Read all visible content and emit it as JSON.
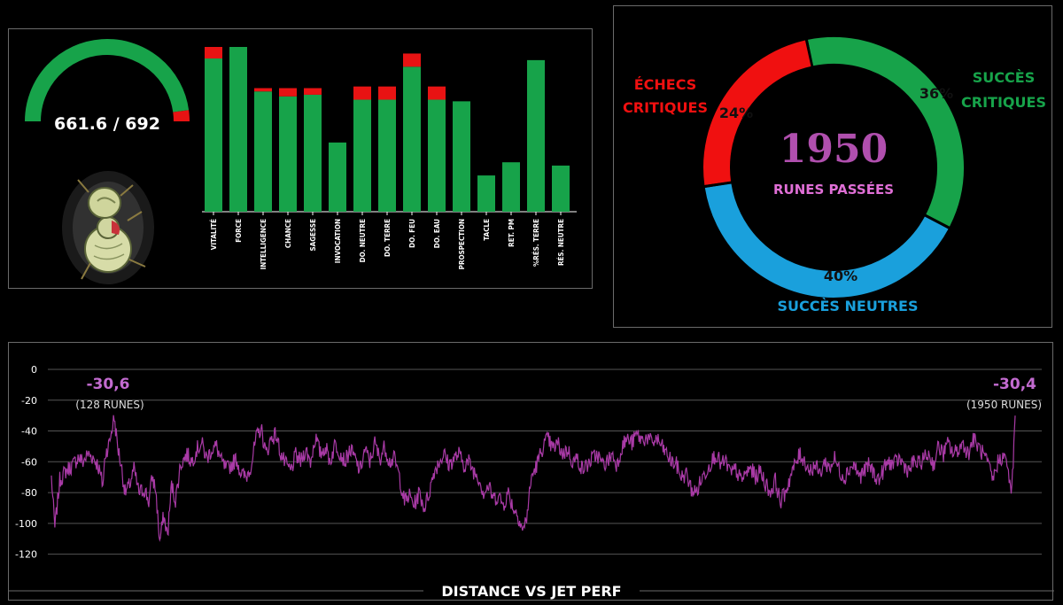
{
  "gauge": {
    "value": 661.6,
    "max": 692,
    "label": "661.6 / 692",
    "fill_color": "#17a34a",
    "rest_color": "#e81313"
  },
  "mascot": {
    "icon": "bandaged-doll-icon"
  },
  "chart_data": [
    {
      "type": "bar",
      "stacked": true,
      "categories": [
        "VITALITÉ",
        "FORCE",
        "INTELLIGENCE",
        "CHANCE",
        "SAGESSE",
        "INVOCATION",
        "DO. NEUTRE",
        "DO. TERRE",
        "DO. FEU",
        "DO. EAU",
        "PROSPECTION",
        "TACLE",
        "RET. PM",
        "%RÉS. TERRE",
        "RÉS. NEUTRE"
      ],
      "series": [
        {
          "color": "#17a34a",
          "values": [
            93,
            100,
            73,
            70,
            71,
            42,
            68,
            68,
            88,
            68,
            67,
            22,
            30,
            92,
            28
          ]
        },
        {
          "color": "#e81313",
          "values": [
            7,
            0,
            2,
            5,
            4,
            0,
            8,
            8,
            8,
            8,
            0,
            0,
            0,
            0,
            0
          ]
        }
      ],
      "ylim": [
        0,
        100
      ]
    },
    {
      "type": "pie",
      "donut": true,
      "center_value": "1950",
      "center_label": "RUNES PASSÉES",
      "slices": [
        {
          "label": "SUCCÈS CRITIQUES",
          "pct_label": "36%",
          "value": 36,
          "color": "#17a34a"
        },
        {
          "label": "SUCCÈS NEUTRES",
          "pct_label": "40%",
          "value": 40,
          "color": "#1aa0dc"
        },
        {
          "label": "ÉCHECS CRITIQUES",
          "pct_label": "24%",
          "value": 24,
          "color": "#f01010"
        }
      ]
    },
    {
      "type": "line",
      "title": "DISTANCE VS JET PERF",
      "ylim": [
        -130,
        0
      ],
      "yticks": [
        0,
        -20,
        -40,
        -60,
        -80,
        -100,
        -120
      ],
      "x_range": [
        1,
        1950
      ],
      "color": "#a93aa6",
      "annotations": [
        {
          "value": "-30,6",
          "sub": "(128 RUNES)",
          "x": 128
        },
        {
          "value": "-30,4",
          "sub": "(1950 RUNES)",
          "x": 1950
        }
      ],
      "anchor_points": [
        [
          1,
          -70
        ],
        [
          8,
          -103
        ],
        [
          18,
          -72
        ],
        [
          30,
          -66
        ],
        [
          45,
          -62
        ],
        [
          55,
          -57
        ],
        [
          65,
          -60
        ],
        [
          75,
          -55
        ],
        [
          85,
          -57
        ],
        [
          95,
          -62
        ],
        [
          105,
          -75
        ],
        [
          110,
          -55
        ],
        [
          118,
          -48
        ],
        [
          125,
          -36
        ],
        [
          128,
          -31
        ],
        [
          135,
          -50
        ],
        [
          142,
          -62
        ],
        [
          150,
          -80
        ],
        [
          158,
          -76
        ],
        [
          168,
          -65
        ],
        [
          178,
          -80
        ],
        [
          190,
          -78
        ],
        [
          198,
          -86
        ],
        [
          205,
          -70
        ],
        [
          212,
          -78
        ],
        [
          220,
          -112
        ],
        [
          228,
          -95
        ],
        [
          236,
          -108
        ],
        [
          244,
          -75
        ],
        [
          252,
          -85
        ],
        [
          262,
          -62
        ],
        [
          275,
          -55
        ],
        [
          285,
          -60
        ],
        [
          295,
          -52
        ],
        [
          305,
          -48
        ],
        [
          315,
          -58
        ],
        [
          325,
          -52
        ],
        [
          335,
          -50
        ],
        [
          345,
          -60
        ],
        [
          355,
          -65
        ],
        [
          365,
          -62
        ],
        [
          375,
          -58
        ],
        [
          385,
          -68
        ],
        [
          395,
          -70
        ],
        [
          405,
          -62
        ],
        [
          415,
          -45
        ],
        [
          425,
          -38
        ],
        [
          435,
          -55
        ],
        [
          445,
          -45
        ],
        [
          455,
          -42
        ],
        [
          465,
          -55
        ],
        [
          475,
          -62
        ],
        [
          485,
          -66
        ],
        [
          495,
          -56
        ],
        [
          505,
          -60
        ],
        [
          515,
          -52
        ],
        [
          525,
          -60
        ],
        [
          535,
          -44
        ],
        [
          545,
          -55
        ],
        [
          555,
          -50
        ],
        [
          565,
          -60
        ],
        [
          575,
          -48
        ],
        [
          585,
          -54
        ],
        [
          595,
          -60
        ],
        [
          605,
          -52
        ],
        [
          615,
          -58
        ],
        [
          625,
          -66
        ],
        [
          635,
          -52
        ],
        [
          645,
          -60
        ],
        [
          655,
          -48
        ],
        [
          665,
          -58
        ],
        [
          675,
          -50
        ],
        [
          685,
          -60
        ],
        [
          695,
          -58
        ],
        [
          705,
          -70
        ],
        [
          715,
          -86
        ],
        [
          725,
          -82
        ],
        [
          735,
          -88
        ],
        [
          745,
          -80
        ],
        [
          755,
          -90
        ],
        [
          765,
          -80
        ],
        [
          775,
          -66
        ],
        [
          785,
          -60
        ],
        [
          795,
          -55
        ],
        [
          805,
          -62
        ],
        [
          815,
          -58
        ],
        [
          825,
          -55
        ],
        [
          835,
          -62
        ],
        [
          845,
          -60
        ],
        [
          855,
          -66
        ],
        [
          865,
          -70
        ],
        [
          875,
          -80
        ],
        [
          885,
          -76
        ],
        [
          895,
          -84
        ],
        [
          905,
          -82
        ],
        [
          915,
          -88
        ],
        [
          925,
          -80
        ],
        [
          935,
          -90
        ],
        [
          945,
          -95
        ],
        [
          955,
          -105
        ],
        [
          962,
          -96
        ],
        [
          972,
          -70
        ],
        [
          985,
          -60
        ],
        [
          995,
          -50
        ],
        [
          1005,
          -45
        ],
        [
          1015,
          -52
        ],
        [
          1025,
          -48
        ],
        [
          1035,
          -55
        ],
        [
          1045,
          -52
        ],
        [
          1055,
          -60
        ],
        [
          1065,
          -58
        ],
        [
          1075,
          -65
        ],
        [
          1085,
          -62
        ],
        [
          1095,
          -58
        ],
        [
          1105,
          -55
        ],
        [
          1115,
          -62
        ],
        [
          1125,
          -60
        ],
        [
          1135,
          -55
        ],
        [
          1145,
          -62
        ],
        [
          1155,
          -50
        ],
        [
          1165,
          -45
        ],
        [
          1175,
          -48
        ],
        [
          1185,
          -42
        ],
        [
          1195,
          -46
        ],
        [
          1205,
          -44
        ],
        [
          1215,
          -48
        ],
        [
          1225,
          -45
        ],
        [
          1235,
          -50
        ],
        [
          1245,
          -55
        ],
        [
          1255,
          -60
        ],
        [
          1265,
          -62
        ],
        [
          1275,
          -70
        ],
        [
          1285,
          -68
        ],
        [
          1295,
          -78
        ],
        [
          1305,
          -80
        ],
        [
          1315,
          -72
        ],
        [
          1325,
          -66
        ],
        [
          1335,
          -60
        ],
        [
          1345,
          -55
        ],
        [
          1355,
          -62
        ],
        [
          1365,
          -60
        ],
        [
          1375,
          -68
        ],
        [
          1385,
          -65
        ],
        [
          1395,
          -72
        ],
        [
          1405,
          -68
        ],
        [
          1415,
          -64
        ],
        [
          1425,
          -70
        ],
        [
          1435,
          -66
        ],
        [
          1445,
          -74
        ],
        [
          1455,
          -80
        ],
        [
          1465,
          -72
        ],
        [
          1475,
          -86
        ],
        [
          1485,
          -80
        ],
        [
          1495,
          -70
        ],
        [
          1505,
          -62
        ],
        [
          1515,
          -55
        ],
        [
          1525,
          -60
        ],
        [
          1535,
          -66
        ],
        [
          1545,
          -62
        ],
        [
          1555,
          -68
        ],
        [
          1565,
          -60
        ],
        [
          1575,
          -64
        ],
        [
          1585,
          -58
        ],
        [
          1595,
          -66
        ],
        [
          1605,
          -70
        ],
        [
          1615,
          -64
        ],
        [
          1625,
          -62
        ],
        [
          1635,
          -70
        ],
        [
          1645,
          -66
        ],
        [
          1655,
          -62
        ],
        [
          1665,
          -68
        ],
        [
          1675,
          -72
        ],
        [
          1685,
          -64
        ],
        [
          1695,
          -60
        ],
        [
          1705,
          -62
        ],
        [
          1715,
          -58
        ],
        [
          1725,
          -62
        ],
        [
          1735,
          -66
        ],
        [
          1745,
          -60
        ],
        [
          1755,
          -62
        ],
        [
          1765,
          -58
        ],
        [
          1775,
          -55
        ],
        [
          1785,
          -62
        ],
        [
          1795,
          -50
        ],
        [
          1805,
          -55
        ],
        [
          1815,
          -48
        ],
        [
          1825,
          -55
        ],
        [
          1835,
          -52
        ],
        [
          1845,
          -48
        ],
        [
          1855,
          -55
        ],
        [
          1865,
          -45
        ],
        [
          1875,
          -50
        ],
        [
          1885,
          -55
        ],
        [
          1895,
          -62
        ],
        [
          1905,
          -72
        ],
        [
          1915,
          -60
        ],
        [
          1925,
          -56
        ],
        [
          1935,
          -62
        ],
        [
          1942,
          -84
        ],
        [
          1946,
          -60
        ],
        [
          1950,
          -30
        ]
      ]
    }
  ]
}
